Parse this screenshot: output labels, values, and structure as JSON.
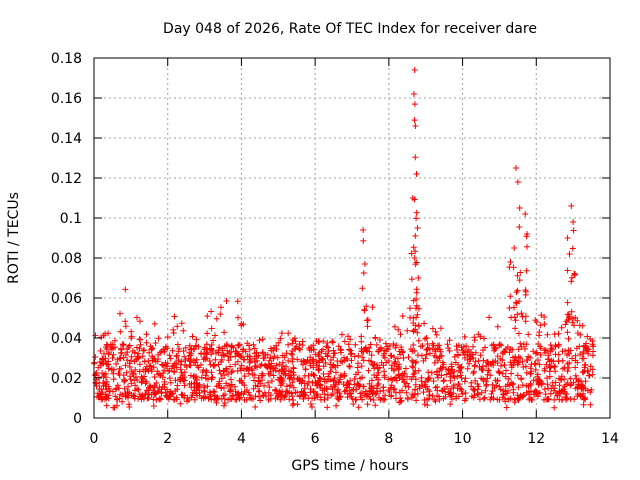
{
  "chart_data": {
    "type": "scatter",
    "title": "Day 048 of 2026, Rate Of TEC Index for receiver dare",
    "xlabel": "GPS time / hours",
    "ylabel": "ROTI / TECUs",
    "xlim": [
      0,
      14
    ],
    "ylim": [
      0,
      0.18
    ],
    "xticks": [
      0,
      2,
      4,
      6,
      8,
      10,
      12,
      14
    ],
    "xtick_labels": [
      "0",
      "2",
      "4",
      "6",
      "8",
      "10",
      "12",
      "14"
    ],
    "yticks": [
      0,
      0.02,
      0.04,
      0.06,
      0.08,
      0.1,
      0.12,
      0.14,
      0.16,
      0.18
    ],
    "ytick_labels": [
      "0",
      "0.02",
      "0.04",
      "0.06",
      "0.08",
      "0.1",
      "0.12",
      "0.14",
      "0.16",
      "0.18"
    ],
    "grid": true,
    "marker": "+",
    "series": [
      {
        "name": "ROTI",
        "color": "#ff0000",
        "x_range": [
          0,
          13.55
        ],
        "typical_range": [
          0.005,
          0.045
        ],
        "envelope": [
          {
            "x": 0.0,
            "y": 0.045
          },
          {
            "x": 0.3,
            "y": 0.05
          },
          {
            "x": 0.5,
            "y": 0.06
          },
          {
            "x": 0.9,
            "y": 0.065
          },
          {
            "x": 1.2,
            "y": 0.05
          },
          {
            "x": 1.5,
            "y": 0.055
          },
          {
            "x": 1.9,
            "y": 0.045
          },
          {
            "x": 2.4,
            "y": 0.06
          },
          {
            "x": 2.8,
            "y": 0.045
          },
          {
            "x": 3.1,
            "y": 0.064
          },
          {
            "x": 3.5,
            "y": 0.06
          },
          {
            "x": 3.9,
            "y": 0.059
          },
          {
            "x": 4.4,
            "y": 0.04
          },
          {
            "x": 5.0,
            "y": 0.045
          },
          {
            "x": 5.5,
            "y": 0.048
          },
          {
            "x": 6.0,
            "y": 0.04
          },
          {
            "x": 6.6,
            "y": 0.05
          },
          {
            "x": 7.0,
            "y": 0.045
          },
          {
            "x": 7.5,
            "y": 0.06
          },
          {
            "x": 8.0,
            "y": 0.045
          },
          {
            "x": 8.3,
            "y": 0.06
          },
          {
            "x": 9.0,
            "y": 0.06
          },
          {
            "x": 9.5,
            "y": 0.045
          },
          {
            "x": 10.0,
            "y": 0.045
          },
          {
            "x": 10.4,
            "y": 0.058
          },
          {
            "x": 11.0,
            "y": 0.045
          },
          {
            "x": 11.5,
            "y": 0.07
          },
          {
            "x": 12.0,
            "y": 0.06
          },
          {
            "x": 12.5,
            "y": 0.05
          },
          {
            "x": 13.0,
            "y": 0.06
          },
          {
            "x": 13.55,
            "y": 0.05
          }
        ],
        "spikes": [
          {
            "x": 7.3,
            "y": 0.094
          },
          {
            "x": 7.35,
            "y": 0.077
          },
          {
            "x": 8.7,
            "y": 0.174
          },
          {
            "x": 8.68,
            "y": 0.162
          },
          {
            "x": 8.72,
            "y": 0.146
          },
          {
            "x": 8.75,
            "y": 0.122
          },
          {
            "x": 8.65,
            "y": 0.11
          },
          {
            "x": 8.78,
            "y": 0.095
          },
          {
            "x": 8.7,
            "y": 0.08
          },
          {
            "x": 8.8,
            "y": 0.07
          },
          {
            "x": 11.45,
            "y": 0.125
          },
          {
            "x": 11.5,
            "y": 0.118
          },
          {
            "x": 11.55,
            "y": 0.105
          },
          {
            "x": 11.7,
            "y": 0.102
          },
          {
            "x": 11.75,
            "y": 0.092
          },
          {
            "x": 11.4,
            "y": 0.085
          },
          {
            "x": 11.3,
            "y": 0.078
          },
          {
            "x": 12.95,
            "y": 0.106
          },
          {
            "x": 13.0,
            "y": 0.098
          },
          {
            "x": 12.85,
            "y": 0.09
          },
          {
            "x": 12.9,
            "y": 0.082
          },
          {
            "x": 13.05,
            "y": 0.072
          }
        ]
      }
    ]
  }
}
